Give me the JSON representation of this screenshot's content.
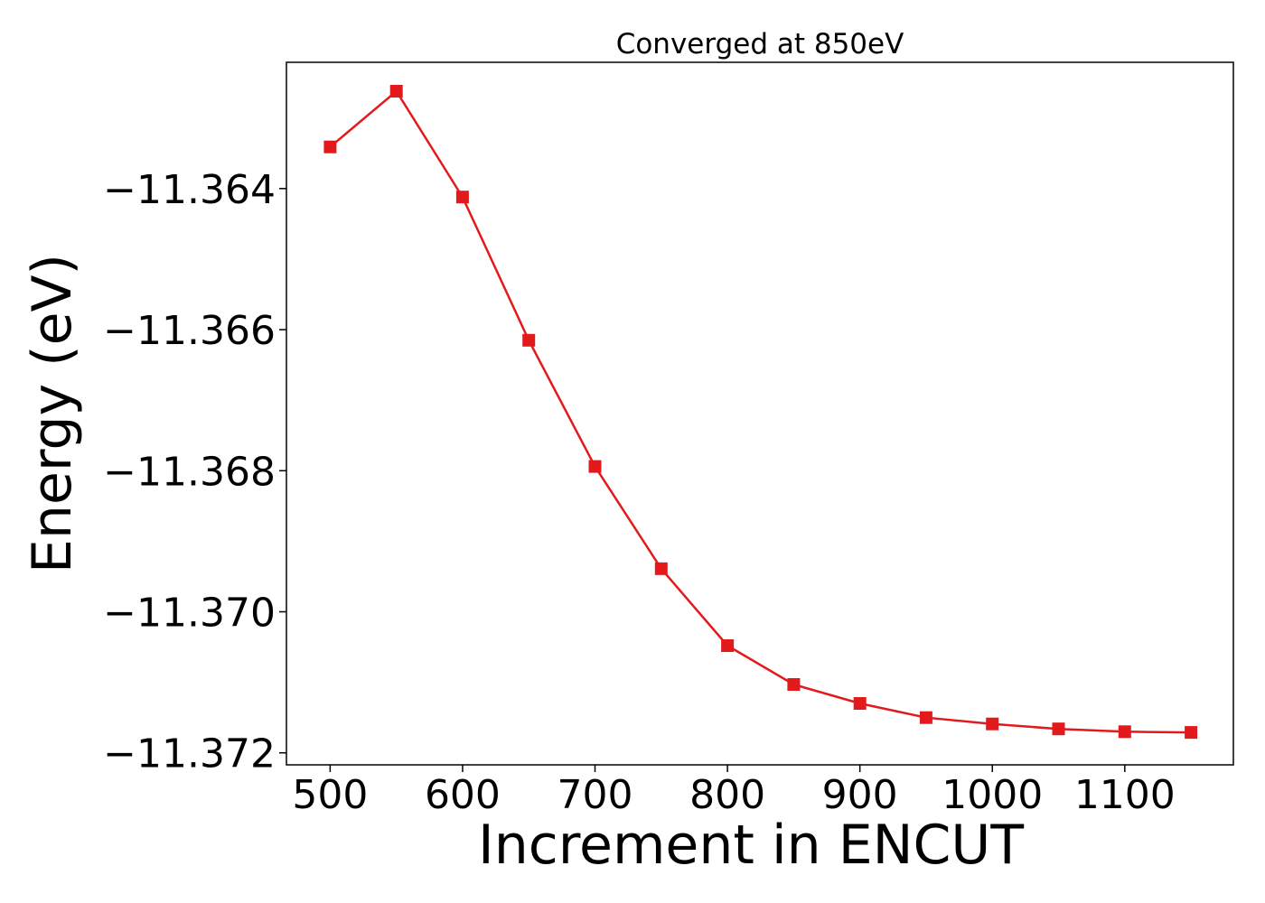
{
  "chart_data": {
    "type": "line",
    "title": "Converged at 850eV",
    "xlabel": "Increment in ENCUT",
    "ylabel": "Energy (eV)",
    "xlim": [
      467,
      1182
    ],
    "ylim": [
      -11.37217,
      -11.36221
    ],
    "x_ticks": [
      500,
      600,
      700,
      800,
      900,
      1000,
      1100
    ],
    "x_tick_labels": [
      "500",
      "600",
      "700",
      "800",
      "900",
      "1000",
      "1100"
    ],
    "y_ticks": [
      -11.364,
      -11.366,
      -11.368,
      -11.37,
      -11.372
    ],
    "y_tick_labels": [
      "−11.364",
      "−11.366",
      "−11.368",
      "−11.370",
      "−11.372"
    ],
    "grid": false,
    "series": [
      {
        "color": "#e31a1c",
        "marker": "square",
        "x": [
          500,
          550,
          600,
          650,
          700,
          750,
          800,
          850,
          900,
          950,
          1000,
          1050,
          1100,
          1150
        ],
        "values": [
          -11.36341,
          -11.36262,
          -11.36412,
          -11.36615,
          -11.36794,
          -11.36939,
          -11.37048,
          -11.37103,
          -11.3713,
          -11.3715,
          -11.37159,
          -11.37166,
          -11.3717,
          -11.37171
        ]
      }
    ]
  }
}
